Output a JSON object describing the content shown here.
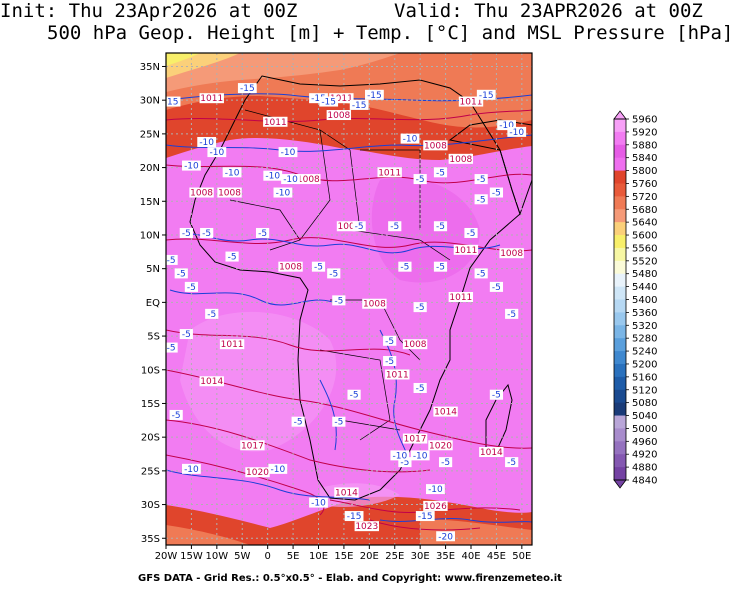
{
  "header": {
    "init": "Init: Thu 23Apr2026 at 00Z",
    "valid": "Valid: Thu 23APR2026 at 00Z",
    "subtitle": "500 hPa Geop. Height [m] + Temp. [°C] and MSL Pressure [hPa]"
  },
  "footer": "GFS DATA - Grid Res.: 0.5°x0.5° - Elab. and Copyright: www.firenzemeteo.it",
  "lat_ticks": [
    "35N",
    "30N",
    "25N",
    "20N",
    "15N",
    "10N",
    "5N",
    "EQ",
    "5S",
    "10S",
    "15S",
    "20S",
    "25S",
    "30S",
    "35S"
  ],
  "lon_ticks": [
    "20W",
    "15W",
    "10W",
    "5W",
    "0",
    "5E",
    "10E",
    "15E",
    "20E",
    "25E",
    "30E",
    "35E",
    "40E",
    "45E",
    "50E"
  ],
  "colorbar": {
    "values": [
      "5960",
      "5920",
      "5880",
      "5840",
      "5800",
      "5760",
      "5720",
      "5680",
      "5640",
      "5600",
      "5560",
      "5520",
      "5480",
      "5440",
      "5400",
      "5360",
      "5320",
      "5280",
      "5240",
      "5200",
      "5160",
      "5120",
      "5080",
      "5040",
      "5000",
      "4960",
      "4920",
      "4880",
      "4840"
    ],
    "colors": [
      "#f7a0f7",
      "#f27cf2",
      "#e65ce6",
      "#ef6fef",
      "#e0452c",
      "#e85a3a",
      "#ef7a55",
      "#f59a78",
      "#fbd07a",
      "#f8ef6a",
      "#f7f7a4",
      "#fbfbd8",
      "#e9f3fb",
      "#cfe6f7",
      "#b6d8f3",
      "#99c8ee",
      "#7ab5e6",
      "#5a9fdc",
      "#3f88cf",
      "#2a71bd",
      "#1e5ca8",
      "#1a4a90",
      "#1a3b78",
      "#b9a6d8",
      "#a88ccc",
      "#9572bf",
      "#8458b1",
      "#7442a3"
    ]
  },
  "pressure_labels": [
    {
      "text": "1011",
      "lon": -11,
      "lat": 30
    },
    {
      "text": "1011",
      "lon": 1.5,
      "lat": 26.5
    },
    {
      "text": "1011",
      "lon": 14.5,
      "lat": 30
    },
    {
      "text": "1008",
      "lon": 14,
      "lat": 27.5
    },
    {
      "text": "1011",
      "lon": 40,
      "lat": 29.5
    },
    {
      "text": "1008",
      "lon": 33,
      "lat": 23
    },
    {
      "text": "1008",
      "lon": 38,
      "lat": 21
    },
    {
      "text": "1011",
      "lon": 24,
      "lat": 19
    },
    {
      "text": "1008",
      "lon": 8,
      "lat": 18
    },
    {
      "text": "1008",
      "lon": -13,
      "lat": 16
    },
    {
      "text": "1008",
      "lon": -7.5,
      "lat": 16
    },
    {
      "text": "1008",
      "lon": 16,
      "lat": 11
    },
    {
      "text": "1011",
      "lon": 39,
      "lat": 7.5
    },
    {
      "text": "1008",
      "lon": 48,
      "lat": 7
    },
    {
      "text": "1008",
      "lon": 4.5,
      "lat": 5
    },
    {
      "text": "1011",
      "lon": 38,
      "lat": 0.5
    },
    {
      "text": "1008",
      "lon": 21,
      "lat": -0.5
    },
    {
      "text": "1008",
      "lon": 29,
      "lat": -6.5
    },
    {
      "text": "1011",
      "lon": -7,
      "lat": -6.5
    },
    {
      "text": "1011",
      "lon": 25.5,
      "lat": -11
    },
    {
      "text": "1014",
      "lon": -11,
      "lat": -12
    },
    {
      "text": "1014",
      "lon": 35,
      "lat": -16.5
    },
    {
      "text": "1017",
      "lon": 29,
      "lat": -20.5
    },
    {
      "text": "1020",
      "lon": 34,
      "lat": -21.5
    },
    {
      "text": "1017",
      "lon": -3,
      "lat": -21.5
    },
    {
      "text": "1014",
      "lon": 44,
      "lat": -22.5
    },
    {
      "text": "1020",
      "lon": -2,
      "lat": -25.5
    },
    {
      "text": "1014",
      "lon": 15.5,
      "lat": -28.5
    },
    {
      "text": "1026",
      "lon": 33,
      "lat": -30.5
    },
    {
      "text": "1023",
      "lon": 19.5,
      "lat": -33.5
    }
  ],
  "temp_labels": [
    {
      "text": "-15",
      "lon": -4,
      "lat": 31.5
    },
    {
      "text": "-15",
      "lon": 10,
      "lat": 30
    },
    {
      "text": "-15",
      "lon": 12,
      "lat": 29.5
    },
    {
      "text": "-15",
      "lon": 21,
      "lat": 30.5
    },
    {
      "text": "-15",
      "lon": 18,
      "lat": 29
    },
    {
      "text": "-15",
      "lon": -19,
      "lat": 29.5
    },
    {
      "text": "-15",
      "lon": 43,
      "lat": 30.5
    },
    {
      "text": "-10",
      "lon": 47,
      "lat": 26
    },
    {
      "text": "-10",
      "lon": 49,
      "lat": 25
    },
    {
      "text": "-10",
      "lon": 28,
      "lat": 24
    },
    {
      "text": "-10",
      "lon": -12,
      "lat": 23.5
    },
    {
      "text": "-10",
      "lon": -10,
      "lat": 22
    },
    {
      "text": "-10",
      "lon": 4,
      "lat": 22
    },
    {
      "text": "-10",
      "lon": -15,
      "lat": 20
    },
    {
      "text": "-10",
      "lon": -7,
      "lat": 19
    },
    {
      "text": "-10",
      "lon": 1,
      "lat": 18.5
    },
    {
      "text": "-10",
      "lon": 4.5,
      "lat": 18
    },
    {
      "text": "-10",
      "lon": 3,
      "lat": 16
    },
    {
      "text": "-5",
      "lon": 30,
      "lat": 18
    },
    {
      "text": "-5",
      "lon": 34,
      "lat": 19
    },
    {
      "text": "-5",
      "lon": 42,
      "lat": 18
    },
    {
      "text": "-5",
      "lon": 45,
      "lat": 16
    },
    {
      "text": "-5",
      "lon": 42,
      "lat": 15
    },
    {
      "text": "-5",
      "lon": -16,
      "lat": 10
    },
    {
      "text": "-5",
      "lon": -12,
      "lat": 10
    },
    {
      "text": "-5",
      "lon": -1,
      "lat": 10
    },
    {
      "text": "-5",
      "lon": 18,
      "lat": 11
    },
    {
      "text": "-5",
      "lon": 25,
      "lat": 11
    },
    {
      "text": "-5",
      "lon": 34,
      "lat": 11
    },
    {
      "text": "-5",
      "lon": 40,
      "lat": 10
    },
    {
      "text": "-5",
      "lon": -19,
      "lat": 6
    },
    {
      "text": "-5",
      "lon": -17,
      "lat": 4
    },
    {
      "text": "-5",
      "lon": -7,
      "lat": 6.5
    },
    {
      "text": "-5",
      "lon": 10,
      "lat": 5
    },
    {
      "text": "-5",
      "lon": 13,
      "lat": 4
    },
    {
      "text": "-5",
      "lon": 27,
      "lat": 5
    },
    {
      "text": "-5",
      "lon": 34,
      "lat": 5
    },
    {
      "text": "-5",
      "lon": 42,
      "lat": 4
    },
    {
      "text": "-5",
      "lon": 45,
      "lat": 2
    },
    {
      "text": "-5",
      "lon": -15,
      "lat": 2
    },
    {
      "text": "-5",
      "lon": -11,
      "lat": -2
    },
    {
      "text": "-5",
      "lon": 14,
      "lat": 0
    },
    {
      "text": "-5",
      "lon": 30,
      "lat": -1
    },
    {
      "text": "-5",
      "lon": 48,
      "lat": -2
    },
    {
      "text": "-5",
      "lon": -16,
      "lat": -5
    },
    {
      "text": "-5",
      "lon": -19,
      "lat": -7
    },
    {
      "text": "-5",
      "lon": 24,
      "lat": -6
    },
    {
      "text": "-5",
      "lon": 24,
      "lat": -9
    },
    {
      "text": "-5",
      "lon": 30,
      "lat": -13
    },
    {
      "text": "-5",
      "lon": 45,
      "lat": -14
    },
    {
      "text": "-5",
      "lon": 17,
      "lat": -14
    },
    {
      "text": "-5",
      "lon": -18,
      "lat": -17
    },
    {
      "text": "-5",
      "lon": 14,
      "lat": -18
    },
    {
      "text": "-5",
      "lon": 6,
      "lat": -18
    },
    {
      "text": "-5",
      "lon": 27,
      "lat": -24
    },
    {
      "text": "-5",
      "lon": 35,
      "lat": -24
    },
    {
      "text": "-5",
      "lon": 48,
      "lat": -24
    },
    {
      "text": "-10",
      "lon": -15,
      "lat": -25
    },
    {
      "text": "-10",
      "lon": 26,
      "lat": -23
    },
    {
      "text": "-10",
      "lon": 30,
      "lat": -23
    },
    {
      "text": "-10",
      "lon": 2,
      "lat": -25
    },
    {
      "text": "-10",
      "lon": 10,
      "lat": -30
    },
    {
      "text": "-10",
      "lon": 33,
      "lat": -28
    },
    {
      "text": "-15",
      "lon": 17,
      "lat": -32
    },
    {
      "text": "-15",
      "lon": 31,
      "lat": -32
    },
    {
      "text": "-20",
      "lon": 35,
      "lat": -35
    }
  ]
}
